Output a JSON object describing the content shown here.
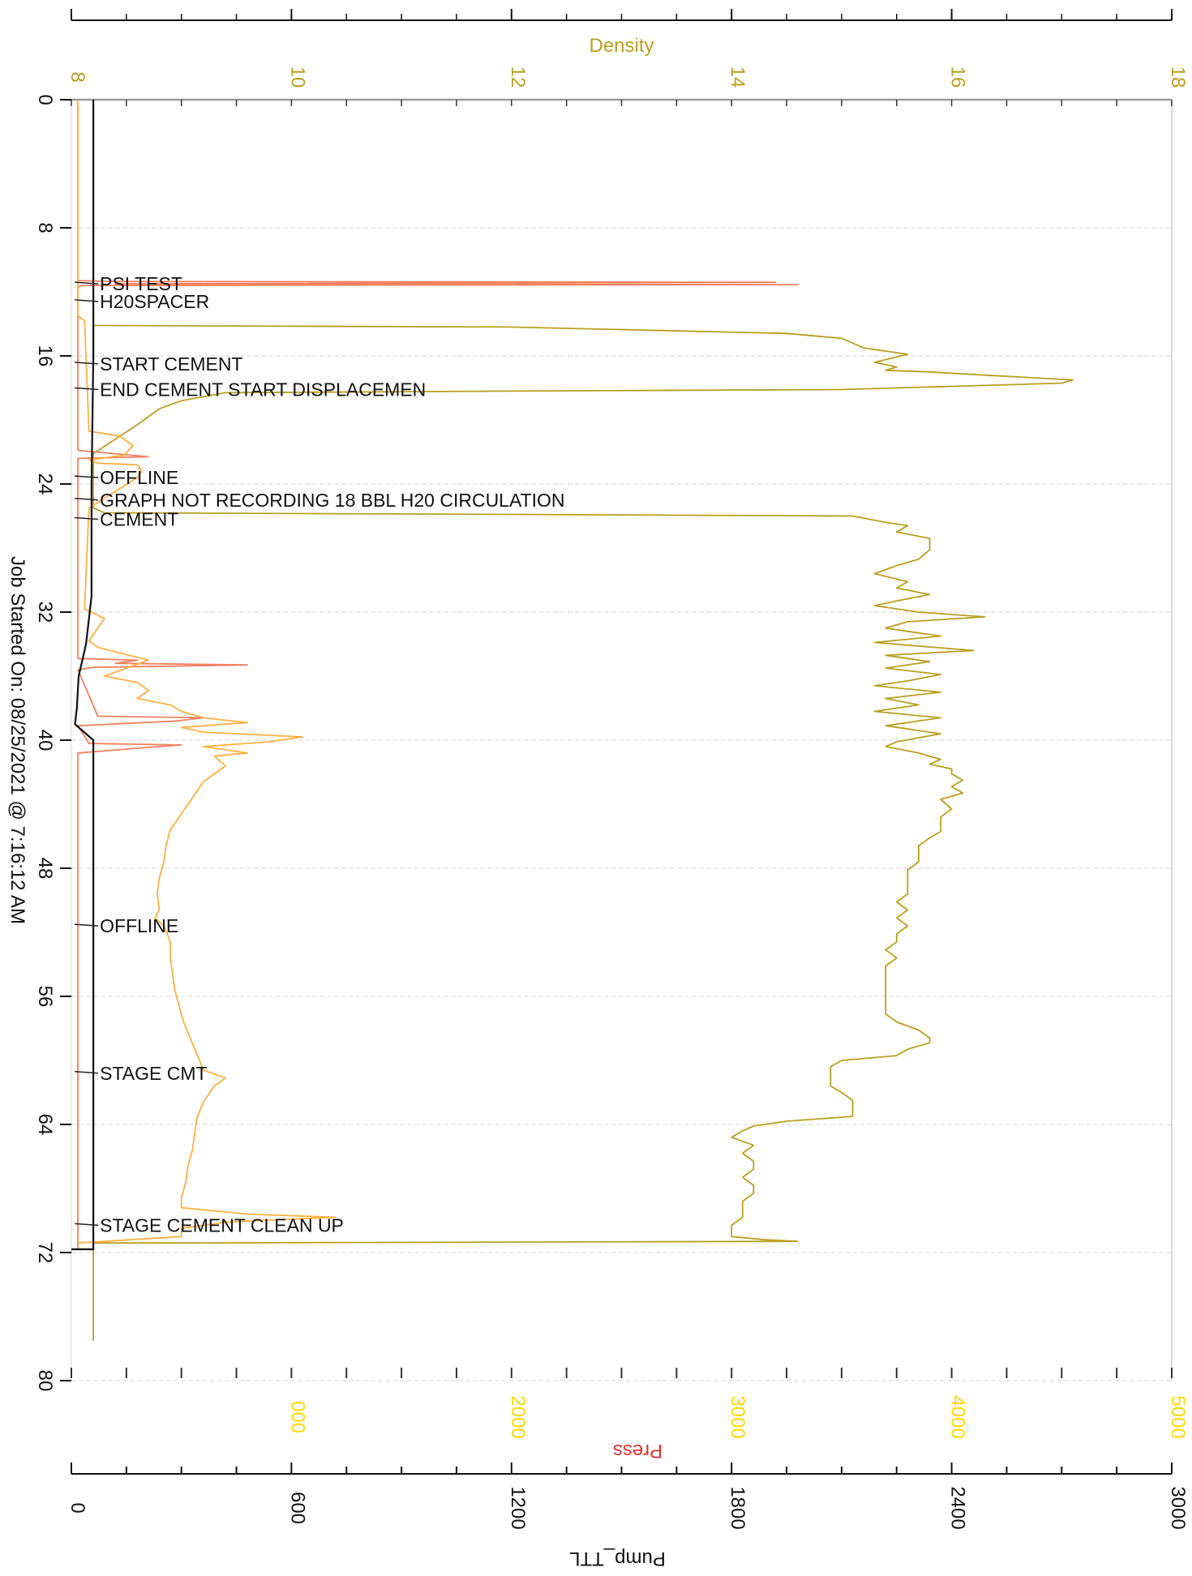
{
  "chart_data": {
    "type": "line",
    "orientation": "time axis vertical (top to bottom), values horizontal",
    "time_axis": {
      "label": "Job Started On: 08/25/2021 @ 7:16:12 AM",
      "range": [
        0,
        80
      ],
      "ticks": [
        "0",
        "8",
        "16",
        "24",
        "32",
        "40",
        "48",
        "56",
        "64",
        "72",
        "80"
      ]
    },
    "density_axis": {
      "label": "Density",
      "range": [
        8,
        18
      ],
      "ticks": [
        "8",
        "10",
        "12",
        "14",
        "16",
        "18"
      ],
      "color": "#b8a020"
    },
    "pump_axis": {
      "label": "Pump_TTL",
      "range": [
        0,
        3000
      ],
      "ticks": [
        "0",
        "600",
        "1200",
        "1800",
        "2400",
        "3000"
      ],
      "color": "#111111"
    },
    "press_axis": {
      "label": "Press",
      "range": [
        0,
        5000
      ],
      "ticks": [
        "000",
        "2000",
        "3000",
        "4000",
        "5000"
      ],
      "color": "#ffd800",
      "label_color": "#e03030"
    },
    "grid": true,
    "events": [
      {
        "t": 11.5,
        "label": "PSI TEST"
      },
      {
        "t": 12.6,
        "label": "H20SPACER"
      },
      {
        "t": 16.5,
        "label": "START CEMENT"
      },
      {
        "t": 18.1,
        "label": "END CEMENT START DISPLACEMEN"
      },
      {
        "t": 23.6,
        "label": "OFFLINE"
      },
      {
        "t": 25.0,
        "label": "GRAPH NOT RECORDING 18 BBL H20 CIRCULATION"
      },
      {
        "t": 26.2,
        "label": "CEMENT"
      },
      {
        "t": 51.6,
        "label": "OFFLINE"
      },
      {
        "t": 60.8,
        "label": "STAGE CMT"
      },
      {
        "t": 70.3,
        "label": "STAGE CEMENT CLEAN UP"
      }
    ],
    "series": [
      {
        "axis": "density",
        "color": "#b8a020",
        "points": [
          [
            0,
            8.2
          ],
          [
            14.1,
            8.2
          ],
          [
            14.1,
            8.3
          ],
          [
            14.2,
            12
          ],
          [
            14.6,
            14.5
          ],
          [
            14.9,
            15.0
          ],
          [
            15.5,
            15.2
          ],
          [
            15.9,
            15.6
          ],
          [
            16.4,
            15.3
          ],
          [
            16.7,
            15.5
          ],
          [
            16.9,
            15.4
          ],
          [
            17.0,
            15.8
          ],
          [
            17.2,
            16.3
          ],
          [
            17.5,
            17.1
          ],
          [
            17.7,
            17.0
          ],
          [
            18.1,
            15.0
          ],
          [
            18.2,
            12.0
          ],
          [
            18.3,
            9.4
          ],
          [
            18.8,
            9.0
          ],
          [
            19.3,
            8.8
          ],
          [
            20.3,
            8.6
          ],
          [
            21.2,
            8.4
          ],
          [
            22.1,
            8.2
          ],
          [
            25.5,
            8.2
          ],
          [
            25.8,
            8.3
          ],
          [
            25.9,
            12
          ],
          [
            26.0,
            15.1
          ],
          [
            26.4,
            15.4
          ],
          [
            26.6,
            15.6
          ],
          [
            27.0,
            15.5
          ],
          [
            27.4,
            15.8
          ],
          [
            28.1,
            15.8
          ],
          [
            28.7,
            15.7
          ],
          [
            29.1,
            15.5
          ],
          [
            29.6,
            15.3
          ],
          [
            30.1,
            15.6
          ],
          [
            30.5,
            15.5
          ],
          [
            30.9,
            15.8
          ],
          [
            31.3,
            15.5
          ],
          [
            31.6,
            15.3
          ],
          [
            32.0,
            15.7
          ],
          [
            32.3,
            16.3
          ],
          [
            32.6,
            15.6
          ],
          [
            33.0,
            15.4
          ],
          [
            33.5,
            15.9
          ],
          [
            33.9,
            15.3
          ],
          [
            34.4,
            16.2
          ],
          [
            34.7,
            15.4
          ],
          [
            35.1,
            15.8
          ],
          [
            35.5,
            15.4
          ],
          [
            35.9,
            15.9
          ],
          [
            36.3,
            15.6
          ],
          [
            36.6,
            15.3
          ],
          [
            37.0,
            15.9
          ],
          [
            37.4,
            15.4
          ],
          [
            37.8,
            15.7
          ],
          [
            38.2,
            15.3
          ],
          [
            38.6,
            15.9
          ],
          [
            39.1,
            15.4
          ],
          [
            39.6,
            15.9
          ],
          [
            40.1,
            15.5
          ],
          [
            40.4,
            15.4
          ],
          [
            40.8,
            15.7
          ],
          [
            41.2,
            15.9
          ],
          [
            41.5,
            15.8
          ],
          [
            41.8,
            16.0
          ],
          [
            42.1,
            16.0
          ],
          [
            42.5,
            16.1
          ],
          [
            42.9,
            16.0
          ],
          [
            43.3,
            16.1
          ],
          [
            43.7,
            15.9
          ],
          [
            44.3,
            16.0
          ],
          [
            44.8,
            15.9
          ],
          [
            45.3,
            15.9
          ],
          [
            45.7,
            15.9
          ],
          [
            46.1,
            15.8
          ],
          [
            46.6,
            15.7
          ],
          [
            47.1,
            15.7
          ],
          [
            47.6,
            15.7
          ],
          [
            48.1,
            15.6
          ],
          [
            48.6,
            15.6
          ],
          [
            49.1,
            15.6
          ],
          [
            49.6,
            15.6
          ],
          [
            50.1,
            15.5
          ],
          [
            50.6,
            15.6
          ],
          [
            51.1,
            15.5
          ],
          [
            51.6,
            15.6
          ],
          [
            52.1,
            15.5
          ],
          [
            52.6,
            15.5
          ],
          [
            53.1,
            15.4
          ],
          [
            53.6,
            15.5
          ],
          [
            54.1,
            15.4
          ],
          [
            54.6,
            15.4
          ],
          [
            55.1,
            15.4
          ],
          [
            55.6,
            15.4
          ],
          [
            56.1,
            15.4
          ],
          [
            56.6,
            15.4
          ],
          [
            57.1,
            15.4
          ],
          [
            57.6,
            15.5
          ],
          [
            58.1,
            15.7
          ],
          [
            58.6,
            15.8
          ],
          [
            58.9,
            15.8
          ],
          [
            59.3,
            15.6
          ],
          [
            59.7,
            15.5
          ],
          [
            60.0,
            15.0
          ],
          [
            60.4,
            14.9
          ],
          [
            60.8,
            14.9
          ],
          [
            61.2,
            14.9
          ],
          [
            61.6,
            14.9
          ],
          [
            62.0,
            15.0
          ],
          [
            62.5,
            15.1
          ],
          [
            63.0,
            15.1
          ],
          [
            63.5,
            15.1
          ],
          [
            63.8,
            14.5
          ],
          [
            64.1,
            14.2
          ],
          [
            64.4,
            14.1
          ],
          [
            64.8,
            14.0
          ],
          [
            65.3,
            14.2
          ],
          [
            65.8,
            14.1
          ],
          [
            66.3,
            14.2
          ],
          [
            66.8,
            14.2
          ],
          [
            67.3,
            14.1
          ],
          [
            67.8,
            14.2
          ],
          [
            68.3,
            14.2
          ],
          [
            68.8,
            14.1
          ],
          [
            69.3,
            14.1
          ],
          [
            69.8,
            14.1
          ],
          [
            70.3,
            14.0
          ],
          [
            70.7,
            14.0
          ],
          [
            71.0,
            14.0
          ],
          [
            71.2,
            14.3
          ],
          [
            71.3,
            14.6
          ],
          [
            71.4,
            9.0
          ],
          [
            71.4,
            8.2
          ],
          [
            77.5,
            8.2
          ]
        ]
      },
      {
        "axis": "press",
        "color": "#f08060",
        "points": [
          [
            0,
            30
          ],
          [
            11.3,
            30
          ],
          [
            11.35,
            200
          ],
          [
            11.4,
            3200
          ],
          [
            11.5,
            200
          ],
          [
            11.55,
            3300
          ],
          [
            11.6,
            50
          ],
          [
            11.7,
            30
          ],
          [
            12.0,
            30
          ],
          [
            21.9,
            30
          ],
          [
            22.3,
            350
          ],
          [
            22.4,
            30
          ],
          [
            34.9,
            30
          ],
          [
            35.0,
            300
          ],
          [
            35.2,
            200
          ],
          [
            35.3,
            800
          ],
          [
            35.45,
            100
          ],
          [
            35.6,
            30
          ],
          [
            38.5,
            120
          ],
          [
            38.6,
            600
          ],
          [
            38.8,
            480
          ],
          [
            39.1,
            30
          ],
          [
            40.2,
            80
          ],
          [
            40.3,
            500
          ],
          [
            40.5,
            300
          ],
          [
            40.8,
            30
          ],
          [
            71.8,
            30
          ]
        ]
      },
      {
        "axis": "press",
        "color": "#ffb040",
        "points": [
          [
            0,
            30
          ],
          [
            13.5,
            30
          ],
          [
            13.8,
            60
          ],
          [
            20.7,
            80
          ],
          [
            21.0,
            220
          ],
          [
            21.6,
            280
          ],
          [
            22.2,
            240
          ],
          [
            22.5,
            80
          ],
          [
            22.7,
            120
          ],
          [
            22.8,
            300
          ],
          [
            23.2,
            320
          ],
          [
            23.6,
            300
          ],
          [
            25.5,
            80
          ],
          [
            31.8,
            60
          ],
          [
            32.4,
            150
          ],
          [
            33.8,
            80
          ],
          [
            34.2,
            120
          ],
          [
            35.0,
            350
          ],
          [
            35.5,
            250
          ],
          [
            36.0,
            150
          ],
          [
            36.4,
            300
          ],
          [
            36.9,
            350
          ],
          [
            37.4,
            300
          ],
          [
            37.8,
            450
          ],
          [
            38.2,
            500
          ],
          [
            38.6,
            600
          ],
          [
            38.9,
            800
          ],
          [
            39.2,
            500
          ],
          [
            39.5,
            600
          ],
          [
            39.8,
            1050
          ],
          [
            40.1,
            900
          ],
          [
            40.4,
            600
          ],
          [
            40.8,
            800
          ],
          [
            41.0,
            650
          ],
          [
            41.6,
            700
          ],
          [
            42.6,
            600
          ],
          [
            43.6,
            550
          ],
          [
            44.6,
            500
          ],
          [
            45.6,
            450
          ],
          [
            46.6,
            430
          ],
          [
            47.6,
            420
          ],
          [
            48.6,
            400
          ],
          [
            49.6,
            390
          ],
          [
            50.6,
            400
          ],
          [
            51.1,
            380
          ],
          [
            51.6,
            420
          ],
          [
            52.6,
            450
          ],
          [
            53.6,
            450
          ],
          [
            54.6,
            460
          ],
          [
            55.6,
            470
          ],
          [
            56.6,
            490
          ],
          [
            57.6,
            510
          ],
          [
            58.6,
            540
          ],
          [
            59.6,
            570
          ],
          [
            60.6,
            600
          ],
          [
            61.1,
            700
          ],
          [
            61.6,
            650
          ],
          [
            62.6,
            600
          ],
          [
            63.6,
            570
          ],
          [
            64.6,
            560
          ],
          [
            65.6,
            550
          ],
          [
            66.6,
            530
          ],
          [
            67.6,
            520
          ],
          [
            68.6,
            500
          ],
          [
            69.2,
            500
          ],
          [
            69.6,
            800
          ],
          [
            69.8,
            1200
          ],
          [
            70.1,
            700
          ],
          [
            70.5,
            500
          ],
          [
            71.0,
            500
          ],
          [
            71.4,
            30
          ]
        ]
      },
      {
        "axis": "pump",
        "color": "#111111",
        "points": [
          [
            0,
            60
          ],
          [
            16.0,
            60
          ],
          [
            24.0,
            55
          ],
          [
            31.0,
            55
          ],
          [
            34.0,
            40
          ],
          [
            36.0,
            20
          ],
          [
            38.0,
            15
          ],
          [
            39.0,
            10
          ],
          [
            40.0,
            60
          ],
          [
            71.8,
            60
          ],
          [
            71.8,
            0
          ]
        ]
      }
    ]
  }
}
